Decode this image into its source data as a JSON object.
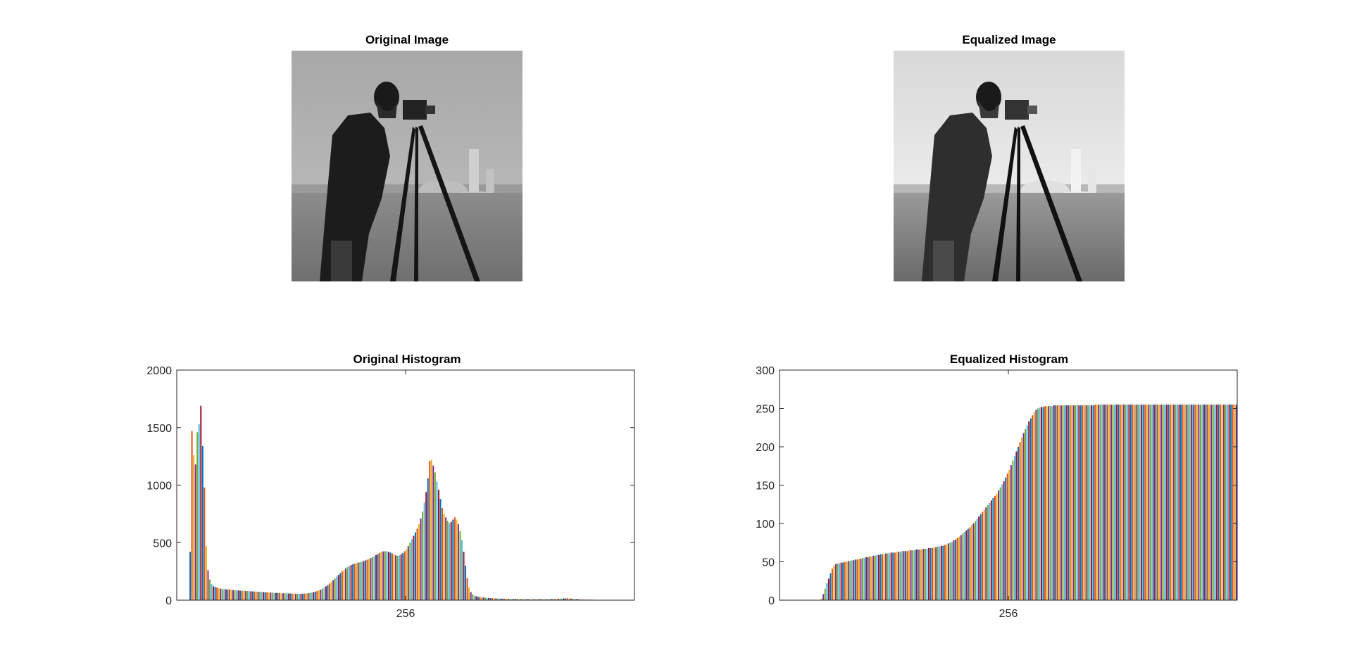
{
  "panels": {
    "original_image_title": "Original Image",
    "equalized_image_title": "Equalized Image"
  },
  "palette": [
    "#0072BD",
    "#D95319",
    "#EDB120",
    "#7E2F8E",
    "#77AC30",
    "#4DBEEE",
    "#A2142F"
  ],
  "chart_data": [
    {
      "type": "bar",
      "title": "Original Histogram",
      "xlabel": "",
      "ylabel": "",
      "ylim": [
        0,
        2000
      ],
      "yticks": [
        0,
        500,
        1000,
        1500,
        2000
      ],
      "xtick_label": "256",
      "grid": false,
      "categories": "grayscale levels 0–255 (256 bars)",
      "values": [
        0,
        0,
        0,
        0,
        0,
        0,
        0,
        420,
        1470,
        1260,
        1180,
        1460,
        1530,
        1690,
        1340,
        980,
        470,
        260,
        180,
        140,
        120,
        115,
        110,
        105,
        100,
        98,
        96,
        94,
        92,
        95,
        90,
        88,
        86,
        85,
        84,
        83,
        82,
        81,
        80,
        79,
        78,
        77,
        76,
        75,
        74,
        73,
        72,
        71,
        70,
        69,
        68,
        67,
        66,
        65,
        64,
        63,
        62,
        61,
        60,
        60,
        60,
        59,
        58,
        58,
        57,
        57,
        56,
        56,
        55,
        56,
        56,
        57,
        58,
        60,
        63,
        66,
        70,
        74,
        79,
        85,
        92,
        100,
        110,
        120,
        132,
        145,
        160,
        175,
        190,
        205,
        220,
        235,
        250,
        262,
        275,
        288,
        298,
        305,
        312,
        318,
        322,
        326,
        330,
        334,
        340,
        346,
        352,
        358,
        366,
        374,
        382,
        392,
        402,
        412,
        420,
        424,
        426,
        424,
        420,
        414,
        406,
        398,
        390,
        386,
        390,
        398,
        410,
        425,
        445,
        470,
        500,
        530,
        560,
        590,
        620,
        660,
        710,
        770,
        850,
        940,
        1060,
        1210,
        1220,
        1170,
        1110,
        1030,
        960,
        880,
        800,
        750,
        720,
        690,
        670,
        680,
        700,
        720,
        700,
        660,
        600,
        520,
        420,
        300,
        190,
        110,
        70,
        50,
        40,
        35,
        30,
        28,
        26,
        24,
        22,
        20,
        19,
        18,
        17,
        16,
        15,
        14,
        14,
        13,
        13,
        12,
        12,
        11,
        11,
        11,
        10,
        10,
        10,
        9,
        9,
        9,
        9,
        8,
        8,
        8,
        8,
        8,
        8,
        8,
        8,
        8,
        8,
        8,
        8,
        8,
        9,
        9,
        10,
        10,
        11,
        12,
        13,
        14,
        15,
        16,
        16,
        15,
        14,
        12,
        10,
        9,
        8,
        7,
        6,
        6,
        5,
        5,
        5,
        4,
        4,
        4,
        3,
        3,
        3,
        3,
        2,
        2,
        2,
        2,
        1,
        1,
        1,
        1,
        1,
        1,
        1,
        1,
        0,
        0,
        0,
        0,
        0,
        0
      ]
    },
    {
      "type": "bar",
      "title": "Equalized Histogram",
      "xlabel": "",
      "ylabel": "",
      "ylim": [
        0,
        300
      ],
      "yticks": [
        0,
        50,
        100,
        150,
        200,
        250,
        300
      ],
      "xtick_label": "256",
      "grid": false,
      "categories": "grayscale levels 0–255 (256 bars)",
      "values": [
        0,
        0,
        0,
        0,
        0,
        0,
        0,
        0,
        0,
        0,
        0,
        0,
        0,
        0,
        0,
        0,
        0,
        0,
        0,
        0,
        0,
        0,
        0,
        2,
        8,
        15,
        22,
        28,
        35,
        41,
        45,
        47,
        48,
        48,
        49,
        49,
        50,
        50,
        51,
        51,
        52,
        52,
        53,
        53,
        54,
        54,
        55,
        55,
        56,
        56,
        57,
        57,
        58,
        58,
        59,
        59,
        60,
        60,
        60,
        61,
        61,
        61,
        62,
        62,
        62,
        63,
        63,
        63,
        64,
        64,
        64,
        64,
        65,
        65,
        65,
        65,
        66,
        66,
        66,
        66,
        67,
        67,
        67,
        68,
        68,
        68,
        69,
        69,
        70,
        70,
        71,
        71,
        72,
        73,
        74,
        75,
        76,
        78,
        79,
        81,
        83,
        85,
        87,
        89,
        91,
        93,
        95,
        98,
        100,
        103,
        106,
        109,
        112,
        115,
        118,
        121,
        124,
        127,
        130,
        133,
        136,
        139,
        143,
        147,
        151,
        155,
        160,
        165,
        170,
        176,
        182,
        188,
        194,
        200,
        206,
        212,
        218,
        223,
        228,
        233,
        237,
        241,
        245,
        248,
        250,
        251,
        252,
        252,
        253,
        253,
        253,
        253,
        253,
        254,
        254,
        254,
        254,
        254,
        254,
        254,
        254,
        254,
        254,
        254,
        254,
        254,
        254,
        254,
        254,
        254,
        254,
        254,
        254,
        254,
        254,
        254,
        255,
        255,
        255,
        255,
        255,
        255,
        255,
        255,
        255,
        255,
        255,
        255,
        255,
        255,
        255,
        255,
        255,
        255,
        255,
        255,
        255,
        255,
        255,
        255,
        255,
        255,
        255,
        255,
        255,
        255,
        255,
        255,
        255,
        255,
        255,
        255,
        255,
        255,
        255,
        255,
        255,
        255,
        255,
        255,
        255,
        255,
        255,
        255,
        255,
        255,
        255,
        255,
        255,
        255,
        255,
        255,
        255,
        255,
        255,
        255,
        255,
        255,
        255,
        255,
        255,
        255,
        255,
        255,
        255,
        255,
        255,
        255,
        255,
        255,
        255,
        255,
        255,
        255,
        255,
        255
      ]
    }
  ]
}
